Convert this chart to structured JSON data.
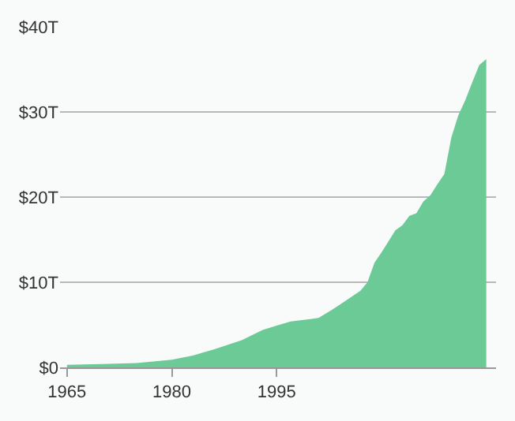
{
  "chart_data": {
    "type": "area",
    "x": [
      1965,
      1970,
      1975,
      1980,
      1983,
      1986,
      1990,
      1993,
      1995,
      1997,
      2000,
      2001,
      2003,
      2005,
      2007,
      2008,
      2009,
      2010,
      2011,
      2012,
      2013,
      2014,
      2015,
      2016,
      2017,
      2018,
      2019,
      2020,
      2021,
      2022,
      2023,
      2024,
      2025
    ],
    "series": [
      {
        "color": "#6cca97",
        "values": [
          0.3,
          0.4,
          0.5,
          0.9,
          1.4,
          2.1,
          3.2,
          4.4,
          4.9,
          5.4,
          5.7,
          5.8,
          6.8,
          7.9,
          9.0,
          10.0,
          12.3,
          13.5,
          14.8,
          16.1,
          16.7,
          17.8,
          18.1,
          19.5,
          20.2,
          21.5,
          22.7,
          27.0,
          29.6,
          31.4,
          33.5,
          35.5,
          36.2
        ]
      }
    ],
    "xlim": [
      1964,
      2026.4
    ],
    "xticks": [
      1965,
      1980,
      1995
    ],
    "ylim": [
      0,
      40
    ],
    "yticks": [
      {
        "value": 0,
        "label": "$0"
      },
      {
        "value": 10,
        "label": "$10T"
      },
      {
        "value": 20,
        "label": "$20T"
      },
      {
        "value": 30,
        "label": "$30T"
      },
      {
        "value": 40,
        "label": "$40T"
      }
    ],
    "grid": "y",
    "legend": false
  }
}
